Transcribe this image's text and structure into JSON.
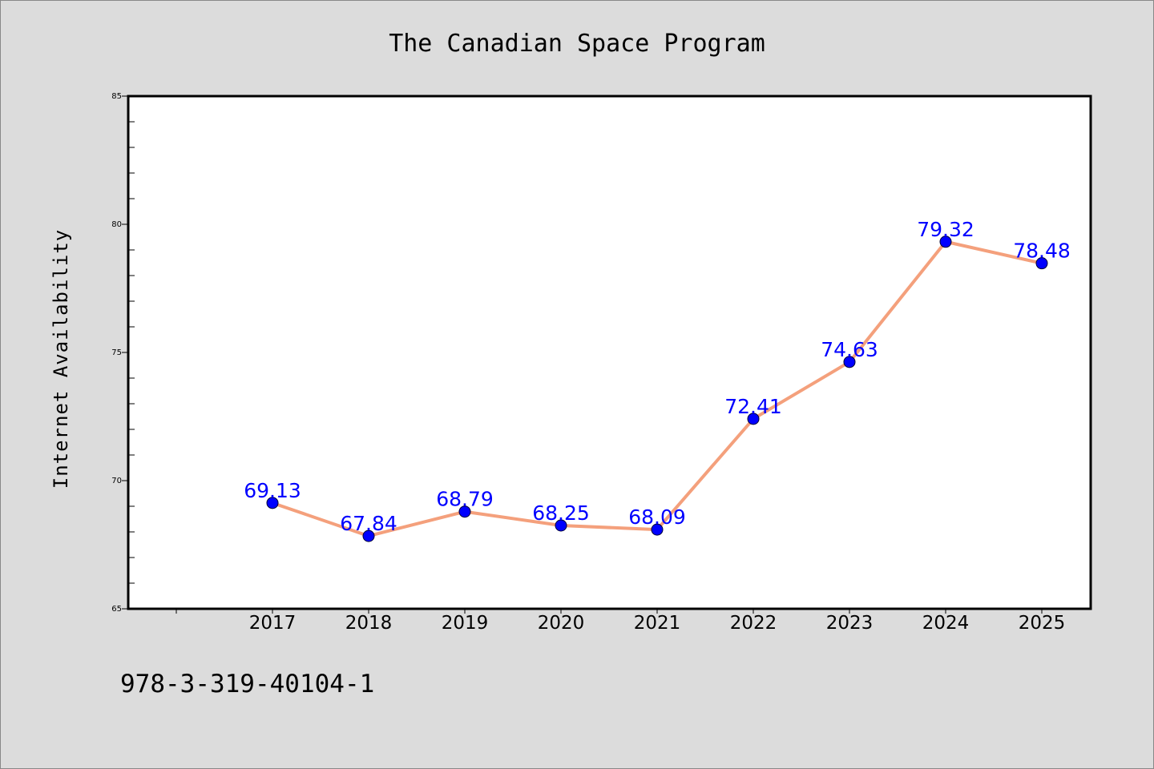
{
  "chart_data": {
    "type": "line",
    "title": "The Canadian Space Program",
    "xlabel": "",
    "ylabel": "Internet Availability",
    "categories": [
      "2017",
      "2018",
      "2019",
      "2020",
      "2021",
      "2022",
      "2023",
      "2024",
      "2025"
    ],
    "series": [
      {
        "values": [
          69.13,
          67.84,
          68.79,
          68.25,
          68.09,
          72.41,
          74.63,
          79.32,
          78.48
        ],
        "data_labels": [
          "69.13",
          "67.84",
          "68.79",
          "68.25",
          "68.09",
          "72.41",
          "74.63",
          "79.32",
          "78.48"
        ],
        "line_color": "#f4a07c",
        "marker_color": "#0000ff"
      }
    ],
    "ylim": [
      65,
      85
    ],
    "yticks": [
      "65",
      "70",
      "75",
      "80",
      "85"
    ],
    "grid": false,
    "legend": "none"
  },
  "footer_text": "978-3-319-40104-1",
  "colors": {
    "background": "#dcdcdc",
    "plot_background": "#ffffff",
    "axis": "#000000"
  }
}
